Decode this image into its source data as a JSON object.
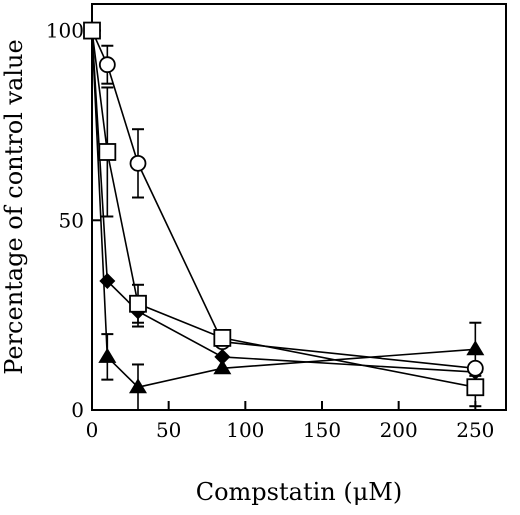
{
  "chart_data": {
    "type": "line",
    "xlabel": "Compstatin (μM)",
    "ylabel": "Percentage of control value",
    "xlim": [
      0,
      270
    ],
    "ylim": [
      0,
      107
    ],
    "xticks": [
      0,
      50,
      100,
      150,
      200,
      250
    ],
    "yticks": [
      0,
      50,
      100
    ],
    "grid": false,
    "series": [
      {
        "marker": "open-circle",
        "x": [
          0,
          10,
          30,
          85,
          250
        ],
        "y": [
          100,
          91,
          65,
          18,
          11
        ],
        "err": [
          0,
          5,
          9,
          0,
          0
        ]
      },
      {
        "marker": "open-square",
        "x": [
          0,
          10,
          30,
          85,
          250
        ],
        "y": [
          100,
          68,
          28,
          19,
          6
        ],
        "err": [
          0,
          17,
          5,
          0,
          5
        ]
      },
      {
        "marker": "filled-diamond",
        "x": [
          0,
          10,
          30,
          85,
          250
        ],
        "y": [
          100,
          34,
          26,
          14,
          10
        ],
        "err": [
          0,
          0,
          4,
          0,
          0
        ]
      },
      {
        "marker": "filled-triangle",
        "x": [
          0,
          10,
          30,
          85,
          250
        ],
        "y": [
          100,
          14,
          6,
          11,
          16
        ],
        "err": [
          0,
          6,
          6,
          0,
          7
        ]
      }
    ]
  }
}
